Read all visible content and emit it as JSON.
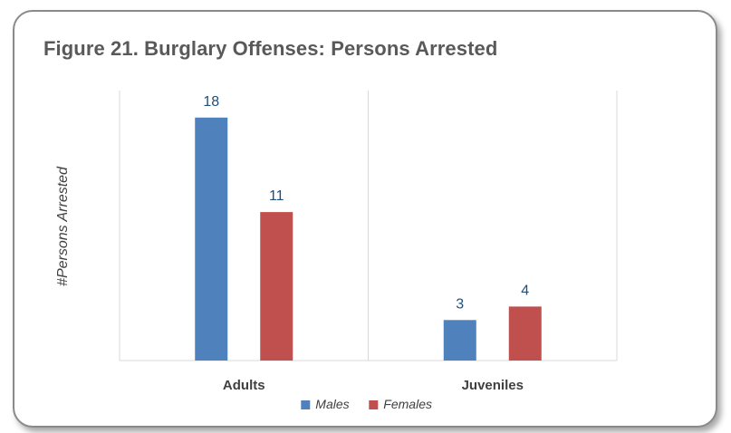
{
  "chart_data": {
    "type": "bar",
    "title": "Figure 21. Burglary Offenses: Persons Arrested",
    "xlabel": "",
    "ylabel": "#Persons Arrested",
    "categories": [
      "Adults",
      "Juveniles"
    ],
    "series": [
      {
        "name": "Males",
        "values": [
          18,
          3
        ],
        "color": "#4F81BD"
      },
      {
        "name": "Females",
        "values": [
          11,
          4
        ],
        "color": "#C0504D"
      }
    ],
    "ylim": [
      0,
      20
    ],
    "grid": false,
    "data_labels": true,
    "legend_position": "bottom"
  },
  "colors": {
    "frame_border": "#8a8a8a",
    "title_text": "#595959",
    "data_label_text": "#1F4E79",
    "axis_text": "#404040",
    "divider": "#d9d9d9"
  }
}
